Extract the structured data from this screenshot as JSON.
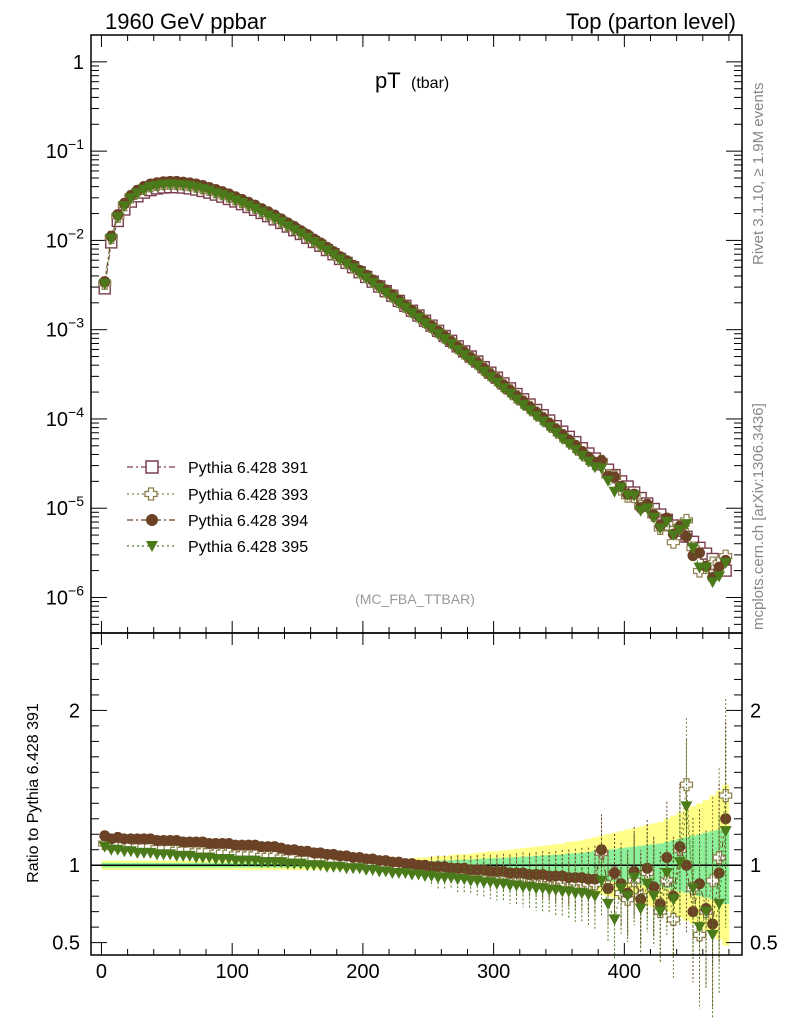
{
  "header": {
    "left": "1960 GeV ppbar",
    "right": "Top (parton level)"
  },
  "side_labels": {
    "rivet": "Rivet 3.1.10, ≥ 1.9M events",
    "mcplots": "mcplots.cern.ch [arXiv:1306.3436]"
  },
  "colors": {
    "s391": "#7a3e4e",
    "s393": "#8b7d4a",
    "s394": "#6b4226",
    "s395": "#4a7a1a",
    "band_yellow": "#ffff88",
    "band_green": "#88ee99"
  },
  "chart_data": [
    {
      "type": "scatter",
      "panel": "main",
      "title": "pT",
      "title_sub": "(tbar)",
      "watermark": "(MC_FBA_TTBAR)",
      "yscale": "log",
      "xlim": [
        -8,
        490
      ],
      "ylim": [
        4e-07,
        2
      ],
      "ytick_labels": [
        "1",
        "10^-1",
        "10^-2",
        "10^-3",
        "10^-4",
        "10^-5",
        "10^-6"
      ],
      "xtick_labels": [
        "0",
        "100",
        "200",
        "300",
        "400"
      ],
      "legend_position": "lower-left",
      "series": [
        {
          "name": "Pythia 6.428 391",
          "marker": "open-square",
          "color_key": "s391"
        },
        {
          "name": "Pythia 6.428 393",
          "marker": "open-cross",
          "color_key": "s393"
        },
        {
          "name": "Pythia 6.428 394",
          "marker": "filled-circle",
          "color_key": "s394"
        },
        {
          "name": "Pythia 6.428 395",
          "marker": "filled-triangle-down",
          "color_key": "s395"
        }
      ],
      "x": [
        2.5,
        7.5,
        12.5,
        17.5,
        22.5,
        27.5,
        32.5,
        37.5,
        42.5,
        47.5,
        52.5,
        57.5,
        62.5,
        67.5,
        72.5,
        77.5,
        82.5,
        87.5,
        92.5,
        97.5,
        102.5,
        107.5,
        112.5,
        117.5,
        122.5,
        127.5,
        132.5,
        137.5,
        142.5,
        147.5,
        152.5,
        157.5,
        162.5,
        167.5,
        172.5,
        177.5,
        182.5,
        187.5,
        192.5,
        197.5,
        202.5,
        207.5,
        212.5,
        217.5,
        222.5,
        227.5,
        232.5,
        237.5,
        242.5,
        247.5,
        252.5,
        257.5,
        262.5,
        267.5,
        272.5,
        277.5,
        282.5,
        287.5,
        292.5,
        297.5,
        302.5,
        307.5,
        312.5,
        317.5,
        322.5,
        327.5,
        332.5,
        337.5,
        342.5,
        347.5,
        352.5,
        357.5,
        362.5,
        367.5,
        372.5,
        377.5,
        382.5,
        387.5,
        392.5,
        397.5,
        402.5,
        407.5,
        412.5,
        417.5,
        422.5,
        427.5,
        432.5,
        437.5,
        442.5,
        447.5,
        452.5,
        457.5,
        462.5,
        467.5,
        472.5,
        477.5
      ],
      "reference_values": [
        0.0029,
        0.0095,
        0.0165,
        0.0222,
        0.0272,
        0.0312,
        0.0343,
        0.0366,
        0.0382,
        0.0391,
        0.0395,
        0.0395,
        0.0391,
        0.0383,
        0.0372,
        0.0358,
        0.0343,
        0.0326,
        0.0309,
        0.0291,
        0.0273,
        0.0255,
        0.0237,
        0.022,
        0.0203,
        0.0187,
        0.0172,
        0.0157,
        0.0143,
        0.013,
        0.0118,
        0.0107,
        0.0096,
        0.0087,
        0.0078,
        0.007,
        0.0062,
        0.0056,
        0.005,
        0.0044,
        0.0039,
        0.00345,
        0.00305,
        0.0027,
        0.0024,
        0.0021,
        0.00185,
        0.00163,
        0.00144,
        0.00126,
        0.00111,
        0.00097,
        0.00085,
        0.00075,
        0.00065,
        0.00057,
        0.0005,
        0.00044,
        0.00038,
        0.00033,
        0.00029,
        0.00025,
        0.00022,
        0.00019,
        0.000166,
        0.000145,
        0.000126,
        0.00011,
        9.6e-05,
        8.3e-05,
        7.2e-05,
        6.3e-05,
        5.5e-05,
        4.7e-05,
        4.1e-05,
        3.6e-05,
        3.1e-05,
        2.7e-05,
        2.35e-05,
        2e-05,
        1.75e-05,
        1.5e-05,
        1.3e-05,
        1.13e-05,
        9.8e-06,
        8.5e-06,
        7.4e-06,
        6.4e-06,
        5.6e-06,
        4.8e-06,
        4.2e-06,
        3.6e-06,
        3.1e-06,
        2.7e-06,
        2.3e-06,
        2e-06
      ]
    },
    {
      "type": "scatter",
      "panel": "ratio",
      "ylabel": "Ratio to Pythia 6.428 391",
      "xlim": [
        -8,
        490
      ],
      "ylim": [
        0.42,
        2.5
      ],
      "ytick_labels": [
        "0.5",
        "1",
        "2"
      ],
      "xtick_labels": [
        "0",
        "100",
        "200",
        "300",
        "400"
      ],
      "series": [
        {
          "name": "Pythia 6.428 393",
          "values": [
            1.14,
            1.14,
            1.13,
            1.13,
            1.13,
            1.12,
            1.12,
            1.12,
            1.11,
            1.11,
            1.11,
            1.1,
            1.1,
            1.1,
            1.09,
            1.09,
            1.09,
            1.08,
            1.08,
            1.08,
            1.07,
            1.07,
            1.07,
            1.07,
            1.06,
            1.06,
            1.06,
            1.05,
            1.05,
            1.05,
            1.04,
            1.04,
            1.04,
            1.03,
            1.03,
            1.03,
            1.02,
            1.02,
            1.02,
            1.01,
            1.01,
            1.01,
            1.0,
            1.0,
            1.0,
            0.99,
            0.99,
            0.99,
            0.99,
            0.98,
            0.98,
            0.98,
            0.97,
            0.97,
            0.97,
            0.96,
            0.96,
            0.96,
            0.95,
            0.95,
            0.95,
            0.94,
            0.94,
            0.93,
            0.93,
            0.93,
            0.92,
            0.92,
            0.91,
            0.91,
            0.9,
            0.9,
            0.89,
            0.89,
            0.88,
            0.88,
            1.08,
            0.86,
            0.95,
            0.82,
            0.78,
            0.9,
            0.8,
            0.95,
            0.85,
            0.7,
            0.9,
            0.65,
            1.1,
            1.52,
            0.85,
            0.55,
            0.7,
            0.9,
            1.05,
            1.45
          ]
        },
        {
          "name": "Pythia 6.428 394",
          "values": [
            1.19,
            1.17,
            1.18,
            1.17,
            1.17,
            1.17,
            1.17,
            1.17,
            1.16,
            1.16,
            1.16,
            1.16,
            1.15,
            1.15,
            1.15,
            1.15,
            1.14,
            1.14,
            1.14,
            1.14,
            1.13,
            1.13,
            1.13,
            1.13,
            1.12,
            1.12,
            1.12,
            1.11,
            1.1,
            1.1,
            1.09,
            1.09,
            1.08,
            1.08,
            1.07,
            1.07,
            1.06,
            1.06,
            1.05,
            1.05,
            1.04,
            1.04,
            1.03,
            1.03,
            1.02,
            1.02,
            1.01,
            1.01,
            1.0,
            1.0,
            0.99,
            0.99,
            0.99,
            0.98,
            0.98,
            0.98,
            0.97,
            0.97,
            0.97,
            0.96,
            0.96,
            0.96,
            0.95,
            0.95,
            0.95,
            0.94,
            0.94,
            0.94,
            0.93,
            0.93,
            0.93,
            0.92,
            0.92,
            0.92,
            0.91,
            0.91,
            1.1,
            0.85,
            0.95,
            0.88,
            0.82,
            0.96,
            0.78,
            0.98,
            0.86,
            0.75,
            1.05,
            0.8,
            1.12,
            1.0,
            0.7,
            0.88,
            0.72,
            0.62,
            0.95,
            1.3
          ]
        },
        {
          "name": "Pythia 6.428 395",
          "values": [
            1.12,
            1.1,
            1.1,
            1.09,
            1.09,
            1.08,
            1.08,
            1.08,
            1.07,
            1.07,
            1.07,
            1.06,
            1.06,
            1.06,
            1.05,
            1.05,
            1.05,
            1.04,
            1.04,
            1.04,
            1.03,
            1.03,
            1.03,
            1.03,
            1.02,
            1.02,
            1.02,
            1.02,
            1.01,
            1.01,
            1.01,
            1.0,
            1.0,
            1.0,
            0.99,
            0.99,
            0.99,
            0.98,
            0.98,
            0.98,
            0.97,
            0.97,
            0.96,
            0.96,
            0.95,
            0.95,
            0.95,
            0.94,
            0.94,
            0.93,
            0.93,
            0.92,
            0.92,
            0.92,
            0.91,
            0.91,
            0.9,
            0.9,
            0.89,
            0.89,
            0.88,
            0.88,
            0.87,
            0.87,
            0.86,
            0.86,
            0.85,
            0.85,
            0.84,
            0.84,
            0.83,
            0.83,
            0.82,
            0.82,
            0.81,
            0.8,
            0.9,
            0.75,
            0.65,
            0.85,
            0.8,
            0.92,
            0.72,
            0.88,
            0.8,
            0.7,
            0.95,
            0.78,
            1.02,
            1.38,
            0.85,
            0.6,
            0.7,
            0.55,
            0.75,
            1.22
          ]
        }
      ],
      "bands": {
        "yellow_halfwidth": [
          0.03,
          0.03,
          0.03,
          0.03,
          0.03,
          0.03,
          0.03,
          0.03,
          0.03,
          0.03,
          0.03,
          0.03,
          0.03,
          0.03,
          0.03,
          0.03,
          0.03,
          0.03,
          0.03,
          0.03,
          0.03,
          0.03,
          0.03,
          0.03,
          0.03,
          0.03,
          0.03,
          0.03,
          0.03,
          0.03,
          0.03,
          0.03,
          0.03,
          0.03,
          0.03,
          0.03,
          0.03,
          0.03,
          0.03,
          0.03,
          0.03,
          0.03,
          0.03,
          0.03,
          0.035,
          0.04,
          0.04,
          0.045,
          0.05,
          0.05,
          0.055,
          0.06,
          0.06,
          0.065,
          0.07,
          0.07,
          0.075,
          0.08,
          0.085,
          0.09,
          0.09,
          0.095,
          0.1,
          0.105,
          0.11,
          0.115,
          0.12,
          0.125,
          0.13,
          0.135,
          0.14,
          0.15,
          0.155,
          0.16,
          0.17,
          0.18,
          0.19,
          0.2,
          0.21,
          0.22,
          0.23,
          0.24,
          0.25,
          0.26,
          0.27,
          0.28,
          0.3,
          0.32,
          0.34,
          0.36,
          0.38,
          0.4,
          0.42,
          0.45,
          0.48,
          0.52
        ],
        "green_halfwidth": [
          0.015,
          0.015,
          0.015,
          0.015,
          0.015,
          0.015,
          0.015,
          0.015,
          0.015,
          0.015,
          0.015,
          0.015,
          0.015,
          0.015,
          0.015,
          0.015,
          0.015,
          0.015,
          0.015,
          0.015,
          0.015,
          0.015,
          0.015,
          0.015,
          0.015,
          0.015,
          0.015,
          0.015,
          0.015,
          0.015,
          0.015,
          0.015,
          0.015,
          0.015,
          0.015,
          0.015,
          0.015,
          0.015,
          0.015,
          0.015,
          0.015,
          0.015,
          0.015,
          0.015,
          0.02,
          0.02,
          0.02,
          0.022,
          0.024,
          0.025,
          0.027,
          0.03,
          0.03,
          0.032,
          0.035,
          0.035,
          0.037,
          0.04,
          0.042,
          0.045,
          0.045,
          0.047,
          0.05,
          0.052,
          0.055,
          0.057,
          0.06,
          0.062,
          0.065,
          0.067,
          0.07,
          0.075,
          0.077,
          0.08,
          0.085,
          0.09,
          0.095,
          0.1,
          0.105,
          0.11,
          0.115,
          0.12,
          0.125,
          0.13,
          0.135,
          0.14,
          0.15,
          0.16,
          0.17,
          0.18,
          0.19,
          0.2,
          0.21,
          0.22,
          0.23,
          0.25
        ]
      }
    }
  ]
}
